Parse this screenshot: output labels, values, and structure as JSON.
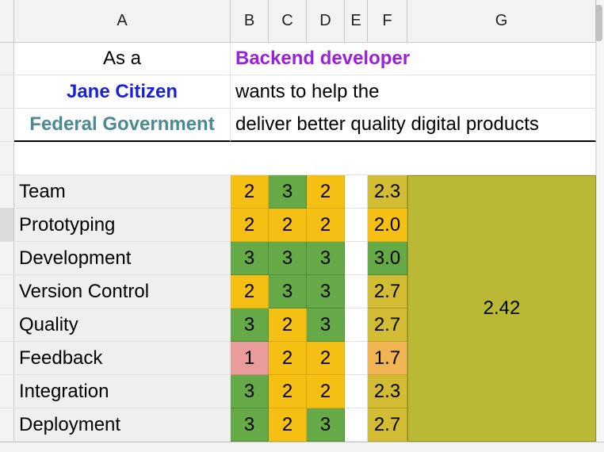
{
  "columns": [
    "A",
    "B",
    "C",
    "D",
    "E",
    "F",
    "G"
  ],
  "story": {
    "as_a": "As a",
    "role": "Backend developer",
    "persona": "Jane Citizen",
    "wants": "wants to help the",
    "org": "Federal Government",
    "goal": "deliver better quality digital products"
  },
  "rows": [
    {
      "label": "Team",
      "b": "2",
      "c": "3",
      "d": "2",
      "f": "2.3"
    },
    {
      "label": "Prototyping",
      "b": "2",
      "c": "2",
      "d": "2",
      "f": "2.0"
    },
    {
      "label": "Development",
      "b": "3",
      "c": "3",
      "d": "3",
      "f": "3.0"
    },
    {
      "label": "Version Control",
      "b": "2",
      "c": "3",
      "d": "3",
      "f": "2.7"
    },
    {
      "label": "Quality",
      "b": "3",
      "c": "2",
      "d": "3",
      "f": "2.7"
    },
    {
      "label": "Feedback",
      "b": "1",
      "c": "2",
      "d": "2",
      "f": "1.7"
    },
    {
      "label": "Integration",
      "b": "3",
      "c": "2",
      "d": "2",
      "f": "2.3"
    },
    {
      "label": "Deployment",
      "b": "3",
      "c": "2",
      "d": "3",
      "f": "2.7"
    }
  ],
  "overall_score": "2.42",
  "colors": {
    "score_1": "#ea9b9b",
    "score_2": "#f5bf14",
    "score_3": "#66aa47",
    "avg_high": "#d2bc33",
    "avg_low": "#f1b452",
    "overall": "#b9b935",
    "role_text": "#9a1fe0",
    "persona_text": "#1a21d6",
    "org_text": "#4a8a96"
  }
}
